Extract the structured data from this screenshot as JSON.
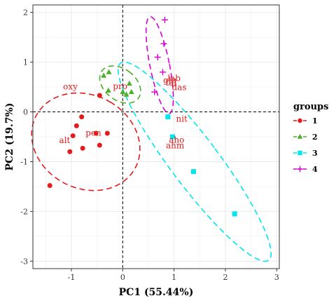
{
  "chart_data": {
    "type": "scatter",
    "xlabel": "PC1 (55.44%)",
    "ylabel": "PC2 (19.7%)",
    "xlim": [
      -1.75,
      3.05
    ],
    "ylim": [
      -3.15,
      2.15
    ],
    "xticks": [
      -1,
      0,
      1,
      2,
      3
    ],
    "yticks": [
      -3,
      -2,
      -1,
      0,
      1,
      2
    ],
    "grid": true,
    "reference_lines": {
      "x": 0,
      "y": 0,
      "style": "dashed"
    },
    "legend": {
      "title": "groups",
      "position": "right"
    },
    "series": [
      {
        "name": "1",
        "color": "#e41a1c",
        "marker": "circle",
        "points": [
          [
            -1.42,
            -1.48
          ],
          [
            -1.03,
            -0.8
          ],
          [
            -0.97,
            -0.48
          ],
          [
            -0.9,
            -0.28
          ],
          [
            -0.8,
            -0.1
          ],
          [
            -0.78,
            -0.73
          ],
          [
            -0.52,
            -0.43
          ],
          [
            -0.45,
            -0.67
          ],
          [
            -0.45,
            0.33
          ],
          [
            -0.3,
            -0.43
          ]
        ],
        "ellipse": {
          "center": [
            -0.72,
            -0.6
          ],
          "width": 1.86,
          "height": 2.2,
          "angle_deg": 58
        }
      },
      {
        "name": "2",
        "color": "#4daf2a",
        "marker": "triangle",
        "points": [
          [
            -0.37,
            0.73
          ],
          [
            -0.28,
            0.43
          ],
          [
            -0.27,
            0.8
          ],
          [
            0.0,
            0.4
          ],
          [
            0.07,
            0.35
          ],
          [
            0.13,
            0.57
          ],
          [
            0.17,
            0.4
          ]
        ],
        "ellipse": {
          "center": [
            -0.05,
            0.55
          ],
          "width": 0.62,
          "height": 0.9,
          "angle_deg": 50
        }
      },
      {
        "name": "3",
        "color": "#00e5ee",
        "marker": "square",
        "points": [
          [
            0.88,
            -0.1
          ],
          [
            0.97,
            -0.5
          ],
          [
            1.38,
            -1.2
          ],
          [
            2.18,
            -2.05
          ]
        ],
        "ellipse": {
          "center": [
            1.4,
            -1.0
          ],
          "width": 0.95,
          "height": 4.9,
          "angle_deg": 36
        }
      },
      {
        "name": "4",
        "color": "#d400d4",
        "marker": "cross",
        "points": [
          [
            0.62,
            0.4
          ],
          [
            0.68,
            1.1
          ],
          [
            0.78,
            0.8
          ],
          [
            0.8,
            1.37
          ],
          [
            0.82,
            1.85
          ]
        ],
        "ellipse": {
          "center": [
            0.72,
            0.94
          ],
          "width": 0.38,
          "height": 1.98,
          "angle_deg": 11
        }
      }
    ],
    "annotations": [
      {
        "text": "oxy",
        "x": -1.02,
        "y": 0.45
      },
      {
        "text": "pro",
        "x": -0.05,
        "y": 0.46
      },
      {
        "text": "pen",
        "x": -0.57,
        "y": -0.48
      },
      {
        "text": "alt",
        "x": -1.13,
        "y": -0.63
      },
      {
        "text": "glu",
        "x": 0.92,
        "y": 0.58
      },
      {
        "text": "lab",
        "x": 1.0,
        "y": 0.62
      },
      {
        "text": "tal",
        "x": 0.94,
        "y": 0.53
      },
      {
        "text": "das",
        "x": 1.1,
        "y": 0.44
      },
      {
        "text": "nit",
        "x": 1.15,
        "y": -0.2
      },
      {
        "text": "aho",
        "x": 1.05,
        "y": -0.62
      },
      {
        "text": "ahm",
        "x": 1.02,
        "y": -0.73
      }
    ]
  }
}
